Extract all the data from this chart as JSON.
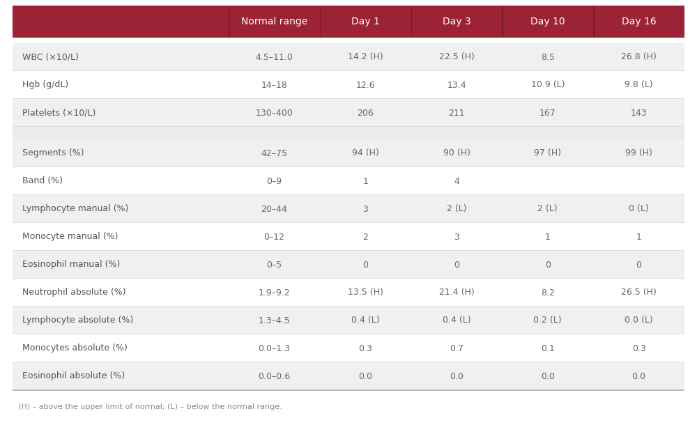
{
  "header_bg": "#9b2335",
  "header_text_color": "#ffffff",
  "row_bg_light": "#f0f0f0",
  "row_bg_white": "#ffffff",
  "separator_color": "#cccccc",
  "text_color": "#555555",
  "label_color": "#555555",
  "footer_text": "(H) – above the upper limit of normal; (L) – below the normal range.",
  "columns": [
    "Normal range",
    "Day 1",
    "Day 3",
    "Day 10",
    "Day 16"
  ],
  "rows_group1": [
    [
      "WBC (×10/L)",
      "4.5–11.0",
      "14.2 (H)",
      "22.5 (H)",
      "8.5",
      "26.8 (H)"
    ],
    [
      "Hgb (g/dL)",
      "14–18",
      "12.6",
      "13.4",
      "10.9 (L)",
      "9.8 (L)"
    ],
    [
      "Platelets (×10/L)",
      "130–400",
      "206",
      "211",
      "167",
      "143"
    ]
  ],
  "rows_group2": [
    [
      "Segments (%)",
      "42–75",
      "94 (H)",
      "90 (H)",
      "97 (H)",
      "99 (H)"
    ],
    [
      "Band (%)",
      "0–9",
      "1",
      "4",
      "",
      ""
    ],
    [
      "Lymphocyte manual (%)",
      "20–44",
      "3",
      "2 (L)",
      "2 (L)",
      "0 (L)"
    ],
    [
      "Monocyte manual (%)",
      "0–12",
      "2",
      "3",
      "1",
      "1"
    ],
    [
      "Eosinophil manual (%)",
      "0–5",
      "0",
      "0",
      "0",
      "0"
    ],
    [
      "Neutrophil absolute (%)",
      "1.9–9.2",
      "13.5 (H)",
      "21.4 (H)",
      "8.2",
      "26.5 (H)"
    ],
    [
      "Lymphocyte absolute (%)",
      "1.3–4.5",
      "0.4 (L)",
      "0.4 (L)",
      "0.2 (L)",
      "0.0 (L)"
    ],
    [
      "Monocytes absolute (%)",
      "0.0–1.3",
      "0.3",
      "0.7",
      "0.1",
      "0.3"
    ],
    [
      "Eosinophil absolute (%)",
      "0.0–0.6",
      "0.0",
      "0.0",
      "0.0",
      "0.0"
    ]
  ],
  "fig_width": 10.0,
  "fig_height": 6.1,
  "dpi": 100
}
